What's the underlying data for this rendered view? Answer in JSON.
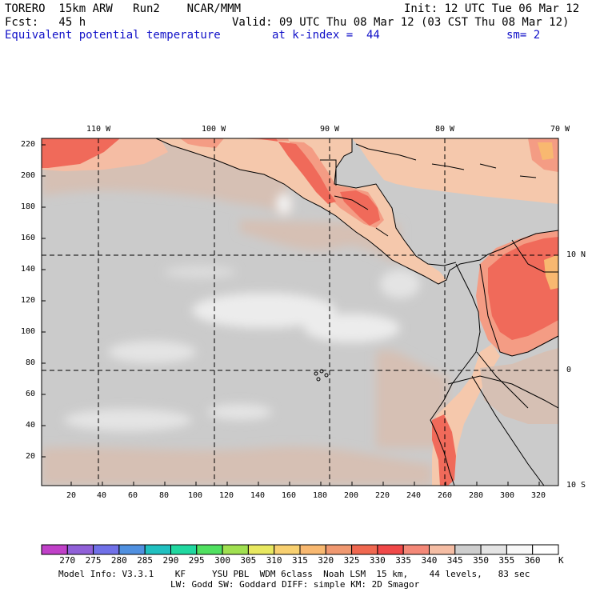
{
  "header": {
    "model": "TORERO  15km ARW   Run2    NCAR/MMM",
    "init": "Init: 12 UTC Tue 06 Mar 12",
    "fcst": "Fcst:   45 h",
    "valid": "Valid: 09 UTC Thu 08 Mar 12 (03 CST Thu 08 Mar 12)",
    "field": "Equivalent potential temperature",
    "level": "at k-index =  44",
    "smooth": "sm= 2"
  },
  "top_lon_labels": [
    "110 W",
    "100 W",
    "90 W",
    "80 W",
    "70 W"
  ],
  "right_lat_labels": [
    "10 N",
    "0",
    "10 S"
  ],
  "left_y_ticks": [
    "220",
    "200",
    "180",
    "160",
    "140",
    "120",
    "100",
    "80",
    "60",
    "40",
    "20"
  ],
  "bottom_x_ticks": [
    "20",
    "40",
    "60",
    "80",
    "100",
    "120",
    "140",
    "160",
    "180",
    "200",
    "220",
    "240",
    "260",
    "280",
    "300",
    "320"
  ],
  "colorbar": {
    "labels": [
      "270",
      "275",
      "280",
      "285",
      "290",
      "295",
      "300",
      "305",
      "310",
      "315",
      "320",
      "325",
      "330",
      "335",
      "340",
      "345",
      "350",
      "355",
      "360"
    ],
    "unit": "K",
    "colors": [
      "#c040c8",
      "#9060d8",
      "#7070e8",
      "#5090e0",
      "#20c0c0",
      "#20d8a0",
      "#50e060",
      "#a0e050",
      "#e8e860",
      "#f8d070",
      "#f8b870",
      "#f09870",
      "#f06850",
      "#f04848",
      "#f48878",
      "#f5bda4",
      "#cecece",
      "#e4e4e4",
      "#f8f8f8",
      "#ffffff"
    ]
  },
  "footer": {
    "line1": "Model Info: V3.3.1    KF     YSU PBL  WDM 6class  Noah LSM  15 km,    44 levels,   83 sec",
    "line2": "LW: Godd SW: Goddard DIFF: simple KM: 2D Smagor"
  },
  "palette": {
    "ocean": "#cbcbcb",
    "warm_ocean": "#d6c0b4",
    "light": "#ececec",
    "land_peach": "#f5c8ac",
    "land_salmon": "#f49c84",
    "land_red": "#f06a5a",
    "land_orange": "#f8b870"
  }
}
